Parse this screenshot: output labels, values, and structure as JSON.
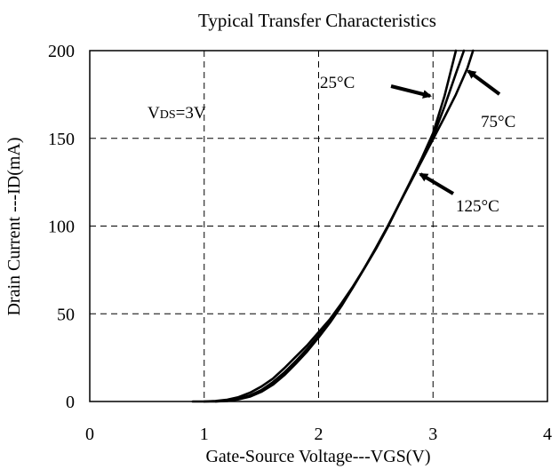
{
  "chart_data": {
    "type": "line",
    "title": "Typical Transfer Characteristics",
    "xlabel": "Gate-Source Voltage---VGS(V)",
    "ylabel": "Drain Current ---ID(mA)",
    "xlim": [
      0,
      4
    ],
    "ylim": [
      0,
      200
    ],
    "x_ticks": [
      "0",
      "1",
      "2",
      "3",
      "4"
    ],
    "y_ticks": [
      "0",
      "50",
      "100",
      "150",
      "200"
    ],
    "grid": true,
    "grid_style": "dashed",
    "series": [
      {
        "name": "25°C",
        "x": [
          0.9,
          1.0,
          1.1,
          1.2,
          1.3,
          1.4,
          1.5,
          1.6,
          1.7,
          1.8,
          1.9,
          2.0,
          2.1,
          2.2,
          2.3,
          2.4,
          2.5,
          2.6,
          2.7,
          2.8,
          2.9,
          3.0,
          3.1,
          3.2
        ],
        "y": [
          0,
          0,
          0.3,
          1,
          2.5,
          5,
          8.5,
          13,
          19,
          25.5,
          32,
          39.5,
          47,
          56,
          65.5,
          76,
          87,
          99,
          112,
          125,
          138.5,
          153,
          174,
          200
        ]
      },
      {
        "name": "75°C",
        "x": [
          1.0,
          1.1,
          1.2,
          1.3,
          1.4,
          1.5,
          1.6,
          1.7,
          1.8,
          1.9,
          2.0,
          2.1,
          2.2,
          2.3,
          2.4,
          2.5,
          2.6,
          2.7,
          2.8,
          2.9,
          3.0,
          3.1,
          3.2,
          3.27
        ],
        "y": [
          0,
          0,
          0.5,
          1.5,
          3.5,
          6.5,
          11,
          16.5,
          23,
          30,
          37.5,
          46,
          55,
          65,
          76,
          87,
          99,
          112,
          125,
          138,
          151,
          168,
          187,
          200
        ]
      },
      {
        "name": "125°C",
        "x": [
          1.1,
          1.2,
          1.3,
          1.4,
          1.5,
          1.6,
          1.7,
          1.8,
          1.9,
          2.0,
          2.1,
          2.2,
          2.3,
          2.4,
          2.5,
          2.6,
          2.7,
          2.8,
          2.9,
          3.0,
          3.1,
          3.2,
          3.3,
          3.35
        ],
        "y": [
          0,
          0.3,
          1.2,
          2.8,
          5.5,
          9.5,
          15,
          21.5,
          28.5,
          36.5,
          45,
          54.5,
          65,
          76,
          87.5,
          99.5,
          112,
          124.5,
          137,
          149.5,
          162,
          175,
          190,
          200
        ]
      }
    ],
    "annotations": [
      {
        "text_main": "V",
        "text_sub": "DS",
        "text_tail": "=3V"
      },
      {
        "text": "25°C"
      },
      {
        "text": "75°C"
      },
      {
        "text": "125°C"
      }
    ]
  }
}
